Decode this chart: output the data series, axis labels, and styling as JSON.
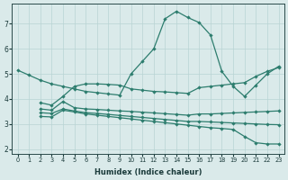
{
  "xlabel": "Humidex (Indice chaleur)",
  "background_color": "#daeaea",
  "grid_color": "#b8d4d4",
  "line_color": "#2d7d6e",
  "ylim": [
    1.8,
    7.8
  ],
  "xlim": [
    -0.5,
    23.5
  ],
  "lines": [
    {
      "x": [
        0,
        1,
        2,
        3,
        4,
        5,
        6,
        7,
        8,
        9,
        10,
        11,
        12,
        13,
        14,
        15,
        16,
        17,
        18,
        19,
        20,
        21,
        22,
        23
      ],
      "y": [
        5.15,
        4.95,
        4.75,
        4.6,
        4.5,
        4.4,
        4.3,
        4.25,
        4.2,
        4.15,
        5.0,
        5.5,
        6.0,
        7.2,
        7.5,
        7.25,
        7.05,
        6.55,
        5.1,
        4.5,
        4.1,
        4.55,
        5.0,
        5.3
      ]
    },
    {
      "x": [
        2,
        3,
        4,
        5,
        6,
        7,
        8,
        9,
        10,
        11,
        12,
        13,
        14,
        15,
        16,
        17,
        18,
        19,
        20,
        21,
        22,
        23
      ],
      "y": [
        3.85,
        3.75,
        4.1,
        4.5,
        4.6,
        4.6,
        4.58,
        4.55,
        4.4,
        4.35,
        4.3,
        4.28,
        4.25,
        4.22,
        4.45,
        4.5,
        4.55,
        4.6,
        4.65,
        4.9,
        5.1,
        5.25
      ]
    },
    {
      "x": [
        2,
        3,
        4,
        5,
        6,
        7,
        8,
        9,
        10,
        11,
        12,
        13,
        14,
        15,
        16,
        17,
        18,
        19,
        20,
        21,
        22,
        23
      ],
      "y": [
        3.6,
        3.55,
        3.9,
        3.65,
        3.6,
        3.58,
        3.55,
        3.52,
        3.5,
        3.47,
        3.44,
        3.41,
        3.38,
        3.35,
        3.4,
        3.4,
        3.42,
        3.44,
        3.46,
        3.48,
        3.5,
        3.52
      ]
    },
    {
      "x": [
        2,
        3,
        4,
        5,
        6,
        7,
        8,
        9,
        10,
        11,
        12,
        13,
        14,
        15,
        16,
        17,
        18,
        19,
        20,
        21,
        22,
        23
      ],
      "y": [
        3.45,
        3.42,
        3.6,
        3.52,
        3.45,
        3.42,
        3.38,
        3.34,
        3.3,
        3.26,
        3.22,
        3.18,
        3.14,
        3.1,
        3.1,
        3.08,
        3.06,
        3.04,
        3.02,
        3.0,
        2.98,
        2.97
      ]
    },
    {
      "x": [
        2,
        3,
        4,
        5,
        6,
        7,
        8,
        9,
        10,
        11,
        12,
        13,
        14,
        15,
        16,
        17,
        18,
        19,
        20,
        21,
        22,
        23
      ],
      "y": [
        3.3,
        3.28,
        3.55,
        3.48,
        3.4,
        3.35,
        3.3,
        3.25,
        3.2,
        3.15,
        3.1,
        3.05,
        3.0,
        2.95,
        2.9,
        2.85,
        2.82,
        2.78,
        2.5,
        2.25,
        2.2,
        2.2
      ]
    }
  ]
}
